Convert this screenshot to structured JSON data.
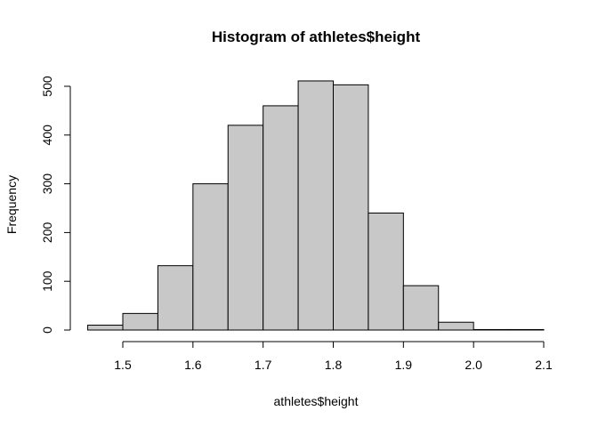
{
  "chart_data": {
    "type": "bar",
    "title": "Histogram of athletes$height",
    "xlabel": "athletes$height",
    "ylabel": "Frequency",
    "bins": [
      {
        "start": 1.45,
        "end": 1.5,
        "value": 10
      },
      {
        "start": 1.5,
        "end": 1.55,
        "value": 34
      },
      {
        "start": 1.55,
        "end": 1.6,
        "value": 132
      },
      {
        "start": 1.6,
        "end": 1.65,
        "value": 300
      },
      {
        "start": 1.65,
        "end": 1.7,
        "value": 420
      },
      {
        "start": 1.7,
        "end": 1.75,
        "value": 460
      },
      {
        "start": 1.75,
        "end": 1.8,
        "value": 511
      },
      {
        "start": 1.8,
        "end": 1.85,
        "value": 503
      },
      {
        "start": 1.85,
        "end": 1.9,
        "value": 240
      },
      {
        "start": 1.9,
        "end": 1.95,
        "value": 91
      },
      {
        "start": 1.95,
        "end": 2.0,
        "value": 16
      },
      {
        "start": 2.0,
        "end": 2.05,
        "value": 1
      },
      {
        "start": 2.05,
        "end": 2.1,
        "value": 1
      }
    ],
    "xticks": [
      "1.5",
      "1.6",
      "1.7",
      "1.8",
      "1.9",
      "2.0",
      "2.1"
    ],
    "xtick_values": [
      1.5,
      1.6,
      1.7,
      1.8,
      1.9,
      2.0,
      2.1
    ],
    "yticks": [
      "0",
      "100",
      "200",
      "300",
      "400",
      "500"
    ],
    "ytick_values": [
      0,
      100,
      200,
      300,
      400,
      500
    ],
    "xlim": [
      1.45,
      2.1
    ],
    "ylim": [
      0,
      500
    ],
    "grid": false,
    "bar_color": "#c8c8c8",
    "edge_color": "#000000"
  }
}
